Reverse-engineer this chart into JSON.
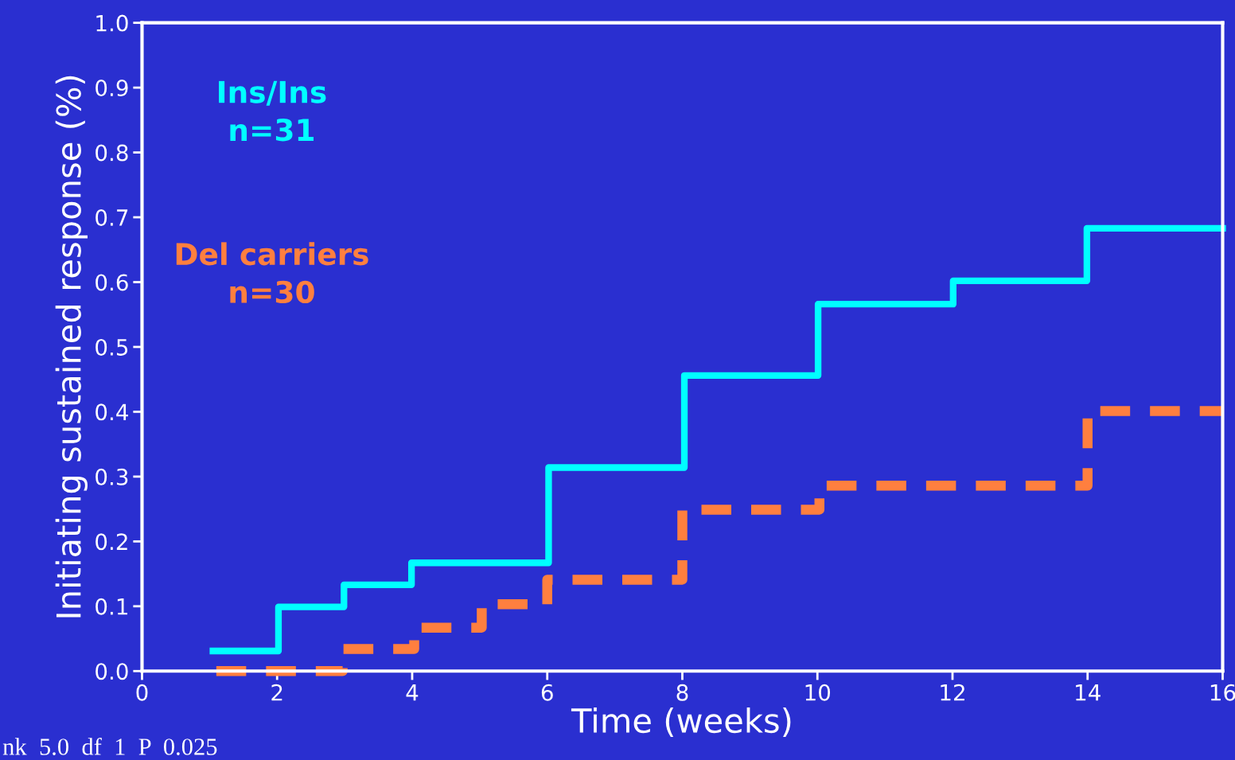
{
  "chart_data": {
    "type": "step",
    "xlabel": "Time (weeks)",
    "ylabel": "Initiating sustained response (%)",
    "xlim": [
      0,
      16
    ],
    "xticks": [
      0,
      2,
      4,
      6,
      8,
      10,
      12,
      14,
      16
    ],
    "ylim": [
      0,
      1.0
    ],
    "yticks": [
      {
        "value": 0,
        "label": "0.0"
      },
      0.1,
      0.2,
      0.3,
      0.4,
      0.5,
      0.6,
      0.7,
      0.8,
      0.9,
      {
        "value": 1,
        "label": "1.0"
      }
    ],
    "grid": false,
    "legend": false,
    "series": [
      {
        "name": "Ins/Ins\nn=31",
        "color": "#00ffff",
        "line_style": "solid",
        "x": [
          1.05,
          2.02,
          2.99,
          3.99,
          6.02,
          8.03,
          10.01,
          12.01,
          13.99,
          16
        ],
        "values": [
          0.031,
          0.099,
          0.133,
          0.167,
          0.314,
          0.456,
          0.566,
          0.602,
          0.683,
          0.683
        ]
      },
      {
        "name": "Del carriers\nn=30",
        "color": "#ff7f3f",
        "line_style": "dashed",
        "x": [
          1.1,
          2.97,
          4.03,
          5.03,
          6.0,
          8.0,
          10.03,
          14.0,
          16
        ],
        "values": [
          0.0,
          0.034,
          0.067,
          0.103,
          0.141,
          0.249,
          0.286,
          0.401,
          0.401
        ]
      }
    ],
    "annotations": [
      "nk  5.0  df  1  P  0.025"
    ]
  }
}
